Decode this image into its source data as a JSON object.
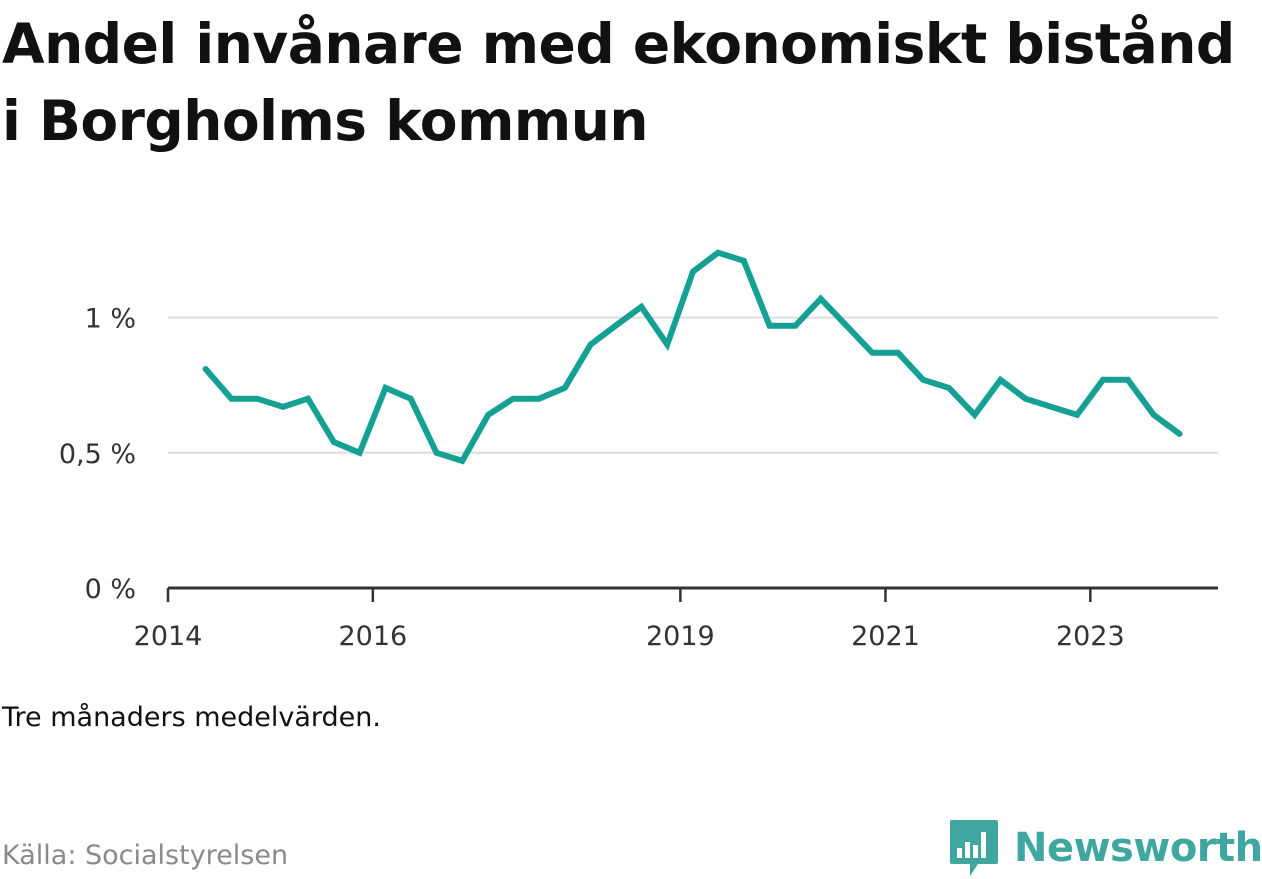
{
  "chart_data": {
    "type": "line",
    "title": "Andel invånare med ekonomiskt bistånd i Borgholms kommun",
    "xlabel": "",
    "ylabel": "",
    "x_start": "2014-01-01",
    "x_end": "2024-03-31",
    "ylim": [
      0,
      1.25
    ],
    "yticks": [
      {
        "value": 0,
        "label": "0 %"
      },
      {
        "value": 0.5,
        "label": "0,5 %"
      },
      {
        "value": 1,
        "label": "1 %"
      }
    ],
    "xticks": [
      {
        "date": "2014-01-01",
        "label": "2014"
      },
      {
        "date": "2016-01-01",
        "label": "2016"
      },
      {
        "date": "2019-01-01",
        "label": "2019"
      },
      {
        "date": "2021-01-01",
        "label": "2021"
      },
      {
        "date": "2023-01-01",
        "label": "2023"
      }
    ],
    "grid": true,
    "legend": "none",
    "series": [
      {
        "color": "#14a093",
        "points": [
          {
            "x": "2014-05-15",
            "y": 0.81
          },
          {
            "x": "2014-08-15",
            "y": 0.7
          },
          {
            "x": "2014-11-15",
            "y": 0.7
          },
          {
            "x": "2015-02-15",
            "y": 0.67
          },
          {
            "x": "2015-05-15",
            "y": 0.7
          },
          {
            "x": "2015-08-15",
            "y": 0.54
          },
          {
            "x": "2015-11-15",
            "y": 0.5
          },
          {
            "x": "2016-02-15",
            "y": 0.74
          },
          {
            "x": "2016-05-15",
            "y": 0.7
          },
          {
            "x": "2016-08-15",
            "y": 0.5
          },
          {
            "x": "2016-11-15",
            "y": 0.47
          },
          {
            "x": "2017-02-15",
            "y": 0.64
          },
          {
            "x": "2017-05-15",
            "y": 0.7
          },
          {
            "x": "2017-08-15",
            "y": 0.7
          },
          {
            "x": "2017-11-15",
            "y": 0.74
          },
          {
            "x": "2018-02-15",
            "y": 0.9
          },
          {
            "x": "2018-05-15",
            "y": 0.97
          },
          {
            "x": "2018-08-15",
            "y": 1.04
          },
          {
            "x": "2018-11-15",
            "y": 0.9
          },
          {
            "x": "2019-02-15",
            "y": 1.17
          },
          {
            "x": "2019-05-15",
            "y": 1.24
          },
          {
            "x": "2019-08-15",
            "y": 1.21
          },
          {
            "x": "2019-11-15",
            "y": 0.97
          },
          {
            "x": "2020-02-15",
            "y": 0.97
          },
          {
            "x": "2020-05-15",
            "y": 1.07
          },
          {
            "x": "2020-08-15",
            "y": 0.97
          },
          {
            "x": "2020-11-15",
            "y": 0.87
          },
          {
            "x": "2021-02-15",
            "y": 0.87
          },
          {
            "x": "2021-05-15",
            "y": 0.77
          },
          {
            "x": "2021-08-15",
            "y": 0.74
          },
          {
            "x": "2021-11-15",
            "y": 0.64
          },
          {
            "x": "2022-02-15",
            "y": 0.77
          },
          {
            "x": "2022-05-15",
            "y": 0.7
          },
          {
            "x": "2022-08-15",
            "y": 0.67
          },
          {
            "x": "2022-11-15",
            "y": 0.64
          },
          {
            "x": "2023-02-15",
            "y": 0.77
          },
          {
            "x": "2023-05-15",
            "y": 0.77
          },
          {
            "x": "2023-08-15",
            "y": 0.64
          },
          {
            "x": "2023-11-15",
            "y": 0.57
          }
        ]
      }
    ],
    "note": "Tre månaders medelvärden.",
    "source": "Källa: Socialstyrelsen"
  },
  "colors": {
    "line": "#14a093",
    "grid": "#dddddd",
    "axis": "#333333",
    "brand": "#3fa79f",
    "source_text": "#8a8a8a"
  },
  "brand": {
    "name": "Newsworthy",
    "icon": "bar-chart-pin-icon"
  }
}
